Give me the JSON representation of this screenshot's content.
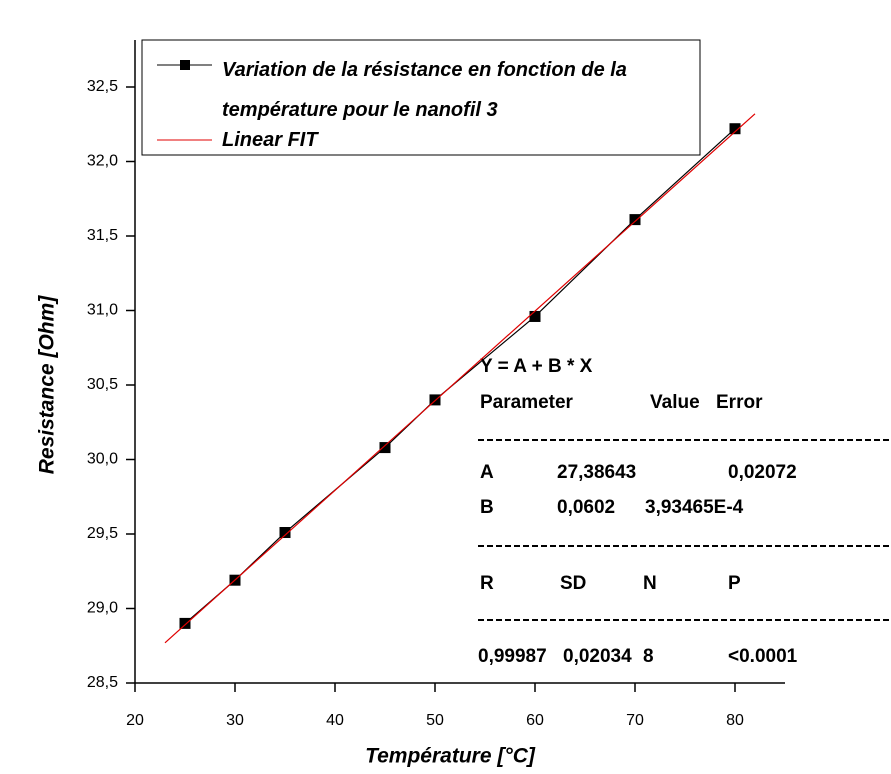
{
  "chart_data": {
    "type": "line",
    "xlabel": "Température [°C]",
    "ylabel": "Resistance [Ohm]",
    "xlim": [
      20,
      85
    ],
    "xticks": [
      20,
      30,
      40,
      50,
      60,
      70,
      80
    ],
    "ylim": [
      28.5,
      32.65
    ],
    "yticks": [
      {
        "value": 28.5,
        "label": "28,5"
      },
      {
        "value": 29.0,
        "label": "29,0"
      },
      {
        "value": 29.5,
        "label": "29,5"
      },
      {
        "value": 30.0,
        "label": "30,0"
      },
      {
        "value": 30.5,
        "label": "30,5"
      },
      {
        "value": 31.0,
        "label": "31,0"
      },
      {
        "value": 31.5,
        "label": "31,5"
      },
      {
        "value": 32.0,
        "label": "32,0"
      },
      {
        "value": 32.5,
        "label": "32,5"
      }
    ],
    "series": [
      {
        "name": "Variation de la résistance en fonction de la température pour le nanofil  3",
        "color": "#000000",
        "marker": "square",
        "x": [
          25,
          30,
          35,
          45,
          50,
          60,
          70,
          80
        ],
        "values": [
          28.9,
          29.19,
          29.51,
          30.08,
          30.4,
          30.96,
          31.61,
          32.22
        ]
      },
      {
        "name": "Linear FIT",
        "color": "#e00000",
        "marker": "none",
        "x": [
          23,
          82
        ],
        "values": [
          28.77,
          32.32
        ]
      }
    ],
    "fit_table": {
      "equation": "Y = A + B * X",
      "header": [
        "Parameter",
        "Value",
        "Error"
      ],
      "rows": [
        [
          "A",
          "27,38643",
          "0,02072"
        ],
        [
          "B",
          "0,0602",
          "3,93465E-4"
        ]
      ],
      "stats_header": [
        "R",
        "SD",
        "N",
        "P"
      ],
      "stats": [
        "0,99987",
        "0,02034",
        "8",
        "<0.0001"
      ]
    }
  }
}
